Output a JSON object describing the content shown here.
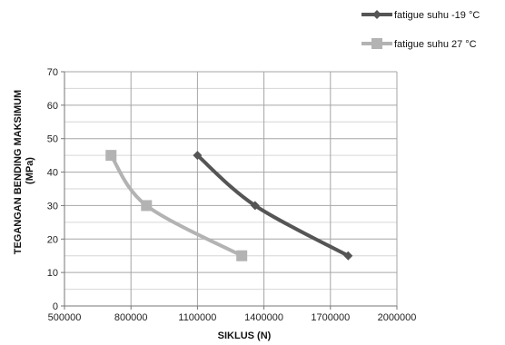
{
  "chart_data": {
    "type": "line",
    "title": "",
    "xlabel": "SIKLUS (N)",
    "ylabel_line1": "TEGANGAN BENDING MAKSIMUM",
    "ylabel_line2": "(MPa)",
    "xlim": [
      500000,
      2000000
    ],
    "ylim": [
      0,
      70
    ],
    "x_ticks": [
      500000,
      800000,
      1100000,
      1400000,
      1700000,
      2000000
    ],
    "x_tick_labels": [
      "500000",
      "800000",
      "1100000",
      "1400000",
      "1700000",
      "2000000"
    ],
    "y_ticks": [
      0,
      10,
      20,
      30,
      40,
      50,
      60,
      70
    ],
    "y_tick_labels": [
      "0",
      "10",
      "20",
      "30",
      "40",
      "50",
      "60",
      "70"
    ],
    "grid": true,
    "legend_position": "top-right",
    "series": [
      {
        "name": "fatigue suhu  -19 °C",
        "color": "#555555",
        "marker": "diamond",
        "x": [
          1100000,
          1360000,
          1780000
        ],
        "y": [
          45,
          30,
          15
        ]
      },
      {
        "name": "fatigue suhu   27 °C",
        "color": "#b3b3b3",
        "marker": "square",
        "x": [
          710000,
          870000,
          1300000
        ],
        "y": [
          45,
          30,
          15
        ]
      }
    ]
  }
}
